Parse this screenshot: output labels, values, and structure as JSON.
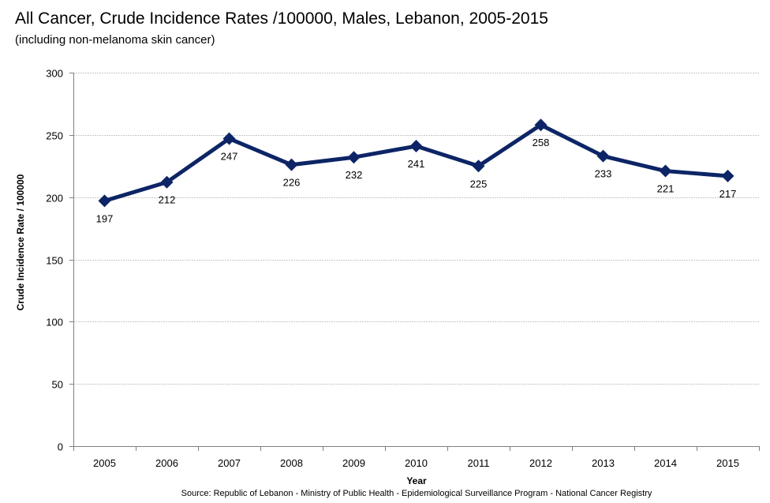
{
  "chart_data": {
    "type": "line",
    "title": "All Cancer, Crude Incidence Rates /100000, Males, Lebanon, 2005-2015",
    "subtitle": "(including non-melanoma skin cancer)",
    "xlabel": "Year",
    "ylabel": "Crude Incidence Rate / 100000",
    "categories": [
      "2005",
      "2006",
      "2007",
      "2008",
      "2009",
      "2010",
      "2011",
      "2012",
      "2013",
      "2014",
      "2015"
    ],
    "series": [
      {
        "name": "Males",
        "values": [
          197,
          212,
          247,
          226,
          232,
          241,
          225,
          258,
          233,
          221,
          217
        ],
        "color": "#0d2566"
      }
    ],
    "ylim": [
      0,
      300
    ],
    "yticks": [
      "0",
      "50",
      "100",
      "150",
      "200",
      "250",
      "300"
    ],
    "grid": true,
    "legend": "none",
    "source": "Source:  Republic of Lebanon - Ministry of Public Health - Epidemiological Surveillance Program - National Cancer Registry"
  }
}
